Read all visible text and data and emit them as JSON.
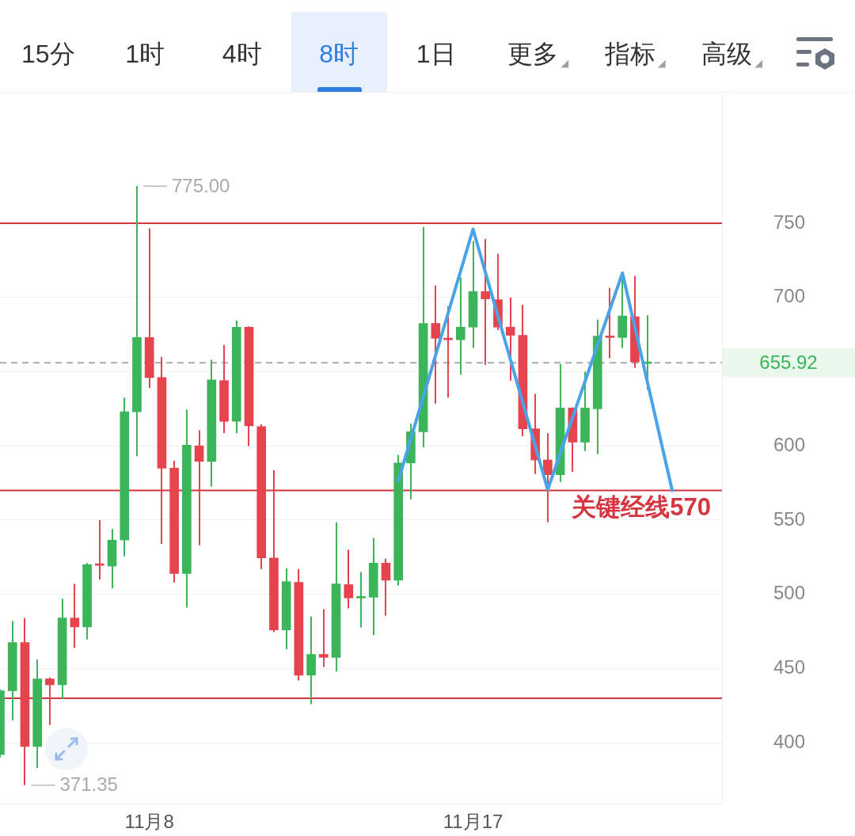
{
  "chart_data": {
    "type": "candlestick",
    "categories": [
      null,
      null,
      null,
      null,
      null,
      null,
      null,
      null,
      null,
      null,
      null,
      null,
      "11月8",
      null,
      null,
      null,
      null,
      null,
      null,
      null,
      null,
      null,
      null,
      null,
      null,
      null,
      null,
      null,
      null,
      null,
      null,
      null,
      null,
      null,
      null,
      null,
      null,
      null,
      "11月17",
      null,
      null,
      null,
      null,
      null,
      null,
      null,
      null,
      null,
      null,
      null,
      null,
      null,
      null,
      null,
      null,
      null,
      null,
      null,
      null
    ],
    "ohlc": [
      [
        392,
        436,
        390,
        435
      ],
      [
        435,
        482,
        415,
        467.5
      ],
      [
        467.5,
        484,
        371.35,
        397.5
      ],
      [
        397.5,
        456,
        383,
        443
      ],
      [
        443,
        444,
        412,
        439
      ],
      [
        439,
        497,
        429.5,
        484
      ],
      [
        484,
        507,
        464,
        478
      ],
      [
        478,
        521,
        469.5,
        520
      ],
      [
        520,
        550,
        510,
        519.5
      ],
      [
        519,
        544,
        504,
        536.5
      ],
      [
        536.5,
        632.5,
        525.5,
        623
      ],
      [
        623,
        775,
        593,
        673
      ],
      [
        673,
        746.5,
        639,
        646
      ],
      [
        646,
        660,
        534,
        585
      ],
      [
        585,
        590,
        508,
        514
      ],
      [
        514,
        624.5,
        491,
        600.5
      ],
      [
        600,
        610.5,
        533,
        589.5
      ],
      [
        589.5,
        658,
        572.5,
        644.5
      ],
      [
        644,
        668,
        608.5,
        616.5
      ],
      [
        616.5,
        684.5,
        608.5,
        680
      ],
      [
        680,
        680.5,
        600,
        613.5
      ],
      [
        613,
        614.5,
        517,
        524.5
      ],
      [
        524.5,
        583.5,
        474.5,
        476
      ],
      [
        476,
        517.5,
        463,
        508.5
      ],
      [
        508,
        517,
        442,
        445.5
      ],
      [
        445.5,
        485,
        426,
        459.5
      ],
      [
        459.5,
        490,
        451,
        457.5
      ],
      [
        457.5,
        548.5,
        448,
        507
      ],
      [
        506.5,
        530,
        490.5,
        497.5
      ],
      [
        497.5,
        515,
        477.5,
        498.5
      ],
      [
        498,
        538,
        472.5,
        521
      ],
      [
        521,
        524,
        485.5,
        509.5
      ],
      [
        509.5,
        594,
        506,
        588.5
      ],
      [
        588.5,
        615,
        564,
        609.5
      ],
      [
        609.5,
        747.5,
        599,
        682.5
      ],
      [
        682.5,
        708,
        628.5,
        672.5
      ],
      [
        672.5,
        694,
        632.5,
        671.5
      ],
      [
        671.5,
        713.5,
        648,
        680
      ],
      [
        680,
        738,
        666,
        704
      ],
      [
        704,
        739.5,
        654.5,
        699
      ],
      [
        698.5,
        729.5,
        678,
        680
      ],
      [
        680,
        700,
        644,
        674.5
      ],
      [
        674.5,
        695,
        606.5,
        611.5
      ],
      [
        611.5,
        635,
        581,
        590.5
      ],
      [
        590.5,
        608.5,
        548.5,
        580.5
      ],
      [
        580.5,
        655,
        575.5,
        625.5
      ],
      [
        625.5,
        626,
        582.5,
        602.5
      ],
      [
        602.5,
        650,
        596.5,
        625.5
      ],
      [
        625,
        685,
        594.5,
        674
      ],
      [
        674,
        706.5,
        659,
        673
      ],
      [
        673,
        712,
        666,
        687.5
      ],
      [
        687,
        714.5,
        652.5,
        656.5
      ],
      [
        655.5,
        688,
        638,
        655.92
      ],
      null,
      null,
      null,
      null,
      null,
      null
    ],
    "colors": [
      "#3cb55a",
      "#3cb55a",
      "#e5444f",
      "#3cb55a",
      "#e5444f",
      "#3cb55a",
      "#e5444f",
      "#3cb55a",
      "#e5444f",
      "#3cb55a",
      "#3cb55a",
      "#3cb55a",
      "#e5444f",
      "#e5444f",
      "#e5444f",
      "#3cb55a",
      "#e5444f",
      "#3cb55a",
      "#e5444f",
      "#3cb55a",
      "#e5444f",
      "#e5444f",
      "#e5444f",
      "#3cb55a",
      "#e5444f",
      "#3cb55a",
      "#e5444f",
      "#3cb55a",
      "#e5444f",
      "#3cb55a",
      "#3cb55a",
      "#e5444f",
      "#3cb55a",
      "#3cb55a",
      "#3cb55a",
      "#e5444f",
      "#e5444f",
      "#3cb55a",
      "#3cb55a",
      "#e5444f",
      "#e5444f",
      "#e5444f",
      "#e5444f",
      "#e5444f",
      "#e5444f",
      "#3cb55a",
      "#e5444f",
      "#3cb55a",
      "#3cb55a",
      "#e5444f",
      "#3cb55a",
      "#e5444f",
      "#3cb55a",
      null,
      null,
      null,
      null,
      null,
      null
    ],
    "value_labels": [
      null,
      null,
      "371.35",
      null,
      null,
      null,
      null,
      null,
      null,
      null,
      null,
      "775.00",
      null,
      null,
      null,
      null,
      null,
      null,
      null,
      null,
      null,
      null,
      null,
      null,
      null,
      null,
      null,
      null,
      null,
      null,
      null,
      null,
      null,
      null,
      null,
      null,
      null,
      null,
      null,
      null,
      null,
      null,
      null,
      null,
      null,
      null,
      null,
      null,
      null,
      null,
      null,
      null,
      null,
      null,
      null,
      null,
      null,
      null,
      null
    ],
    "series": [
      {
        "type": "line",
        "color": "#4aa3e8",
        "values": [
          null,
          null,
          null,
          null,
          null,
          null,
          null,
          null,
          null,
          null,
          null,
          null,
          null,
          null,
          null,
          null,
          null,
          null,
          null,
          null,
          null,
          null,
          null,
          null,
          null,
          null,
          null,
          null,
          null,
          null,
          null,
          null,
          576.5,
          null,
          null,
          null,
          null,
          null,
          746,
          null,
          null,
          null,
          null,
          null,
          570.5,
          null,
          null,
          null,
          null,
          null,
          716.5,
          null,
          null,
          null,
          570,
          null,
          null,
          null,
          null
        ]
      }
    ],
    "ylim": [
      359,
      838
    ],
    "yticks": [
      400,
      450,
      500,
      550,
      600,
      {
        "value": 650,
        "label": null
      },
      700,
      750
    ],
    "grid": "y",
    "ref_lines": [
      {
        "axis": "y",
        "value": 750,
        "color": "#d6343f"
      },
      {
        "axis": "y",
        "value": 570,
        "label": "关键经线570",
        "color": "#d6343f"
      },
      {
        "axis": "y",
        "value": 430,
        "color": "#d6343f"
      },
      {
        "axis": "y",
        "value": 655.92,
        "label": "655.92",
        "color": "#aaaaaa",
        "line_style": "dashed"
      }
    ],
    "annotations": [
      "15分",
      "1时",
      "4时",
      {
        "text": "8时"
      },
      "1日",
      "更多◢",
      "指标◢",
      "高级◢"
    ]
  }
}
